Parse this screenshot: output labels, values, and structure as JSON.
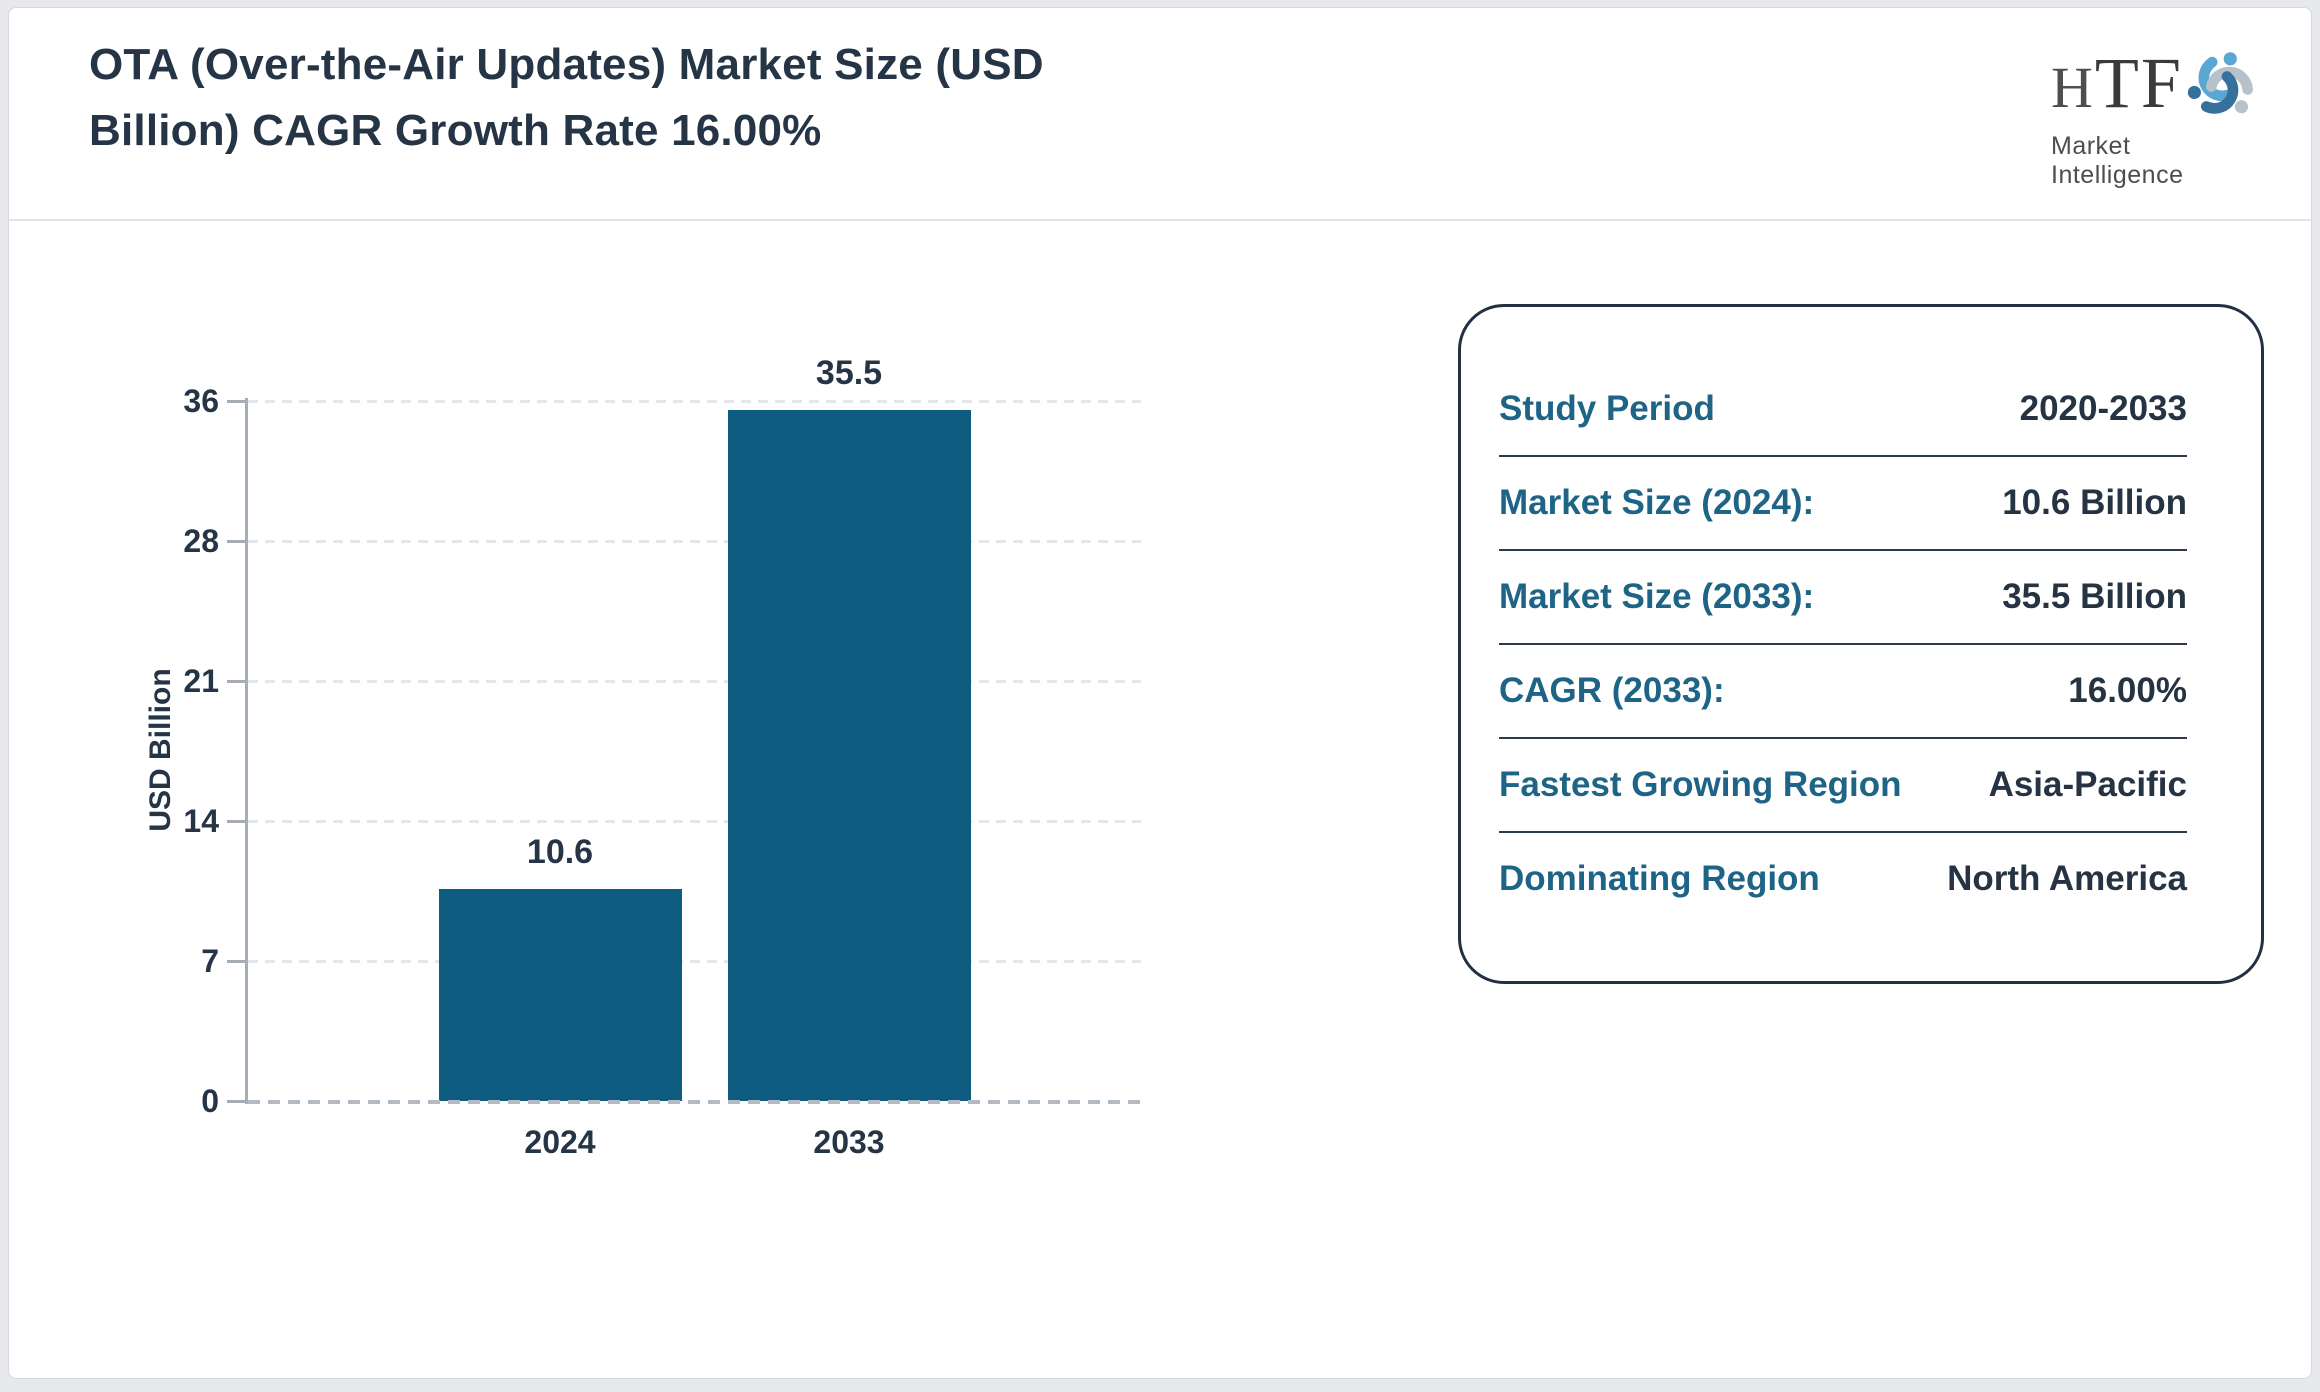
{
  "header": {
    "title_line1": "OTA (Over-the-Air Updates) Market Size (USD",
    "title_line2": "Billion) CAGR Growth Rate 16.00%",
    "logo": {
      "text": "HTF",
      "subtext": "Market Intelligence",
      "swirl_colors": [
        "#5ba7d4",
        "#b6c1c9",
        "#36719c"
      ]
    }
  },
  "chart_data": {
    "type": "bar",
    "title": "OTA (Over-the-Air Updates) Market Size (USD Billion) CAGR Growth Rate 16.00%",
    "categories": [
      "2024",
      "2033"
    ],
    "values": [
      10.6,
      35.5
    ],
    "value_labels": [
      "10.6",
      "35.5"
    ],
    "xlabel": "",
    "ylabel": "USD Billion",
    "yticks": [
      0,
      7,
      14,
      21,
      28,
      36
    ],
    "ylim": [
      0,
      36
    ],
    "grid": "horizontal-dashed",
    "legend_position": "none",
    "bar_color": "#0e5c80"
  },
  "info_card": {
    "rows": [
      {
        "label": "Study Period",
        "value": "2020-2033"
      },
      {
        "label": "Market Size (2024):",
        "value": "10.6 Billion"
      },
      {
        "label": "Market Size (2033):",
        "value": "35.5 Billion"
      },
      {
        "label": "CAGR (2033):",
        "value": "16.00%"
      },
      {
        "label": "Fastest Growing Region",
        "value": "Asia-Pacific"
      },
      {
        "label": "Dominating Region",
        "value": "North America"
      }
    ]
  },
  "colors": {
    "bar": "#0e5c80",
    "accent_teal": "#1e6486",
    "dark_text": "#253545",
    "axis": "#a6adb8",
    "gridline": "#e5e6ea",
    "baseline_dash": "#b3bac3",
    "card_border": "#223042",
    "page_background": "#e7e8ec"
  }
}
